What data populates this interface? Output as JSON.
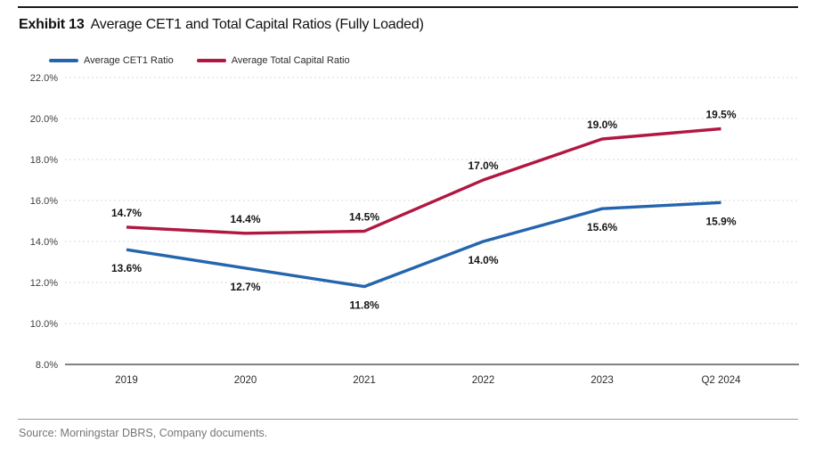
{
  "header": {
    "exhibit": "Exhibit 13",
    "title": "Average CET1 and Total Capital Ratios (Fully Loaded)"
  },
  "legend": [
    {
      "label": "Average CET1 Ratio",
      "color": "#2565ae"
    },
    {
      "label": "Average Total Capital Ratio",
      "color": "#b11741"
    }
  ],
  "source": "Source: Morningstar DBRS, Company documents.",
  "colors": {
    "cet1_line": "#2565ae",
    "total_capital_line": "#b11741",
    "gridline": "#d9d9d9",
    "axis_line": "#58595b",
    "top_rule": "#1a1a1a",
    "source_text": "#757679"
  },
  "chart_data": {
    "type": "line",
    "categories": [
      "2019",
      "2020",
      "2021",
      "2022",
      "2023",
      "Q2 2024"
    ],
    "series": [
      {
        "name": "Average CET1 Ratio",
        "color": "#2565ae",
        "values": [
          13.6,
          12.7,
          11.8,
          14.0,
          15.6,
          15.9
        ],
        "label_position": "below"
      },
      {
        "name": "Average Total Capital Ratio",
        "color": "#b11741",
        "values": [
          14.7,
          14.4,
          14.5,
          17.0,
          19.0,
          19.5
        ],
        "label_position": "above"
      }
    ],
    "title": "Average CET1 and Total Capital Ratios (Fully Loaded)",
    "xlabel": "",
    "ylabel": "",
    "ylim": [
      8,
      22
    ],
    "yticks": [
      8,
      10,
      12,
      14,
      16,
      18,
      20,
      22
    ],
    "ytick_labels": [
      "8.0%",
      "10.0%",
      "12.0%",
      "14.0%",
      "16.0%",
      "18.0%",
      "20.0%",
      "22.0%"
    ],
    "value_suffix": "%",
    "grid": "horizontal-dashed",
    "legend_position": "top-left"
  }
}
